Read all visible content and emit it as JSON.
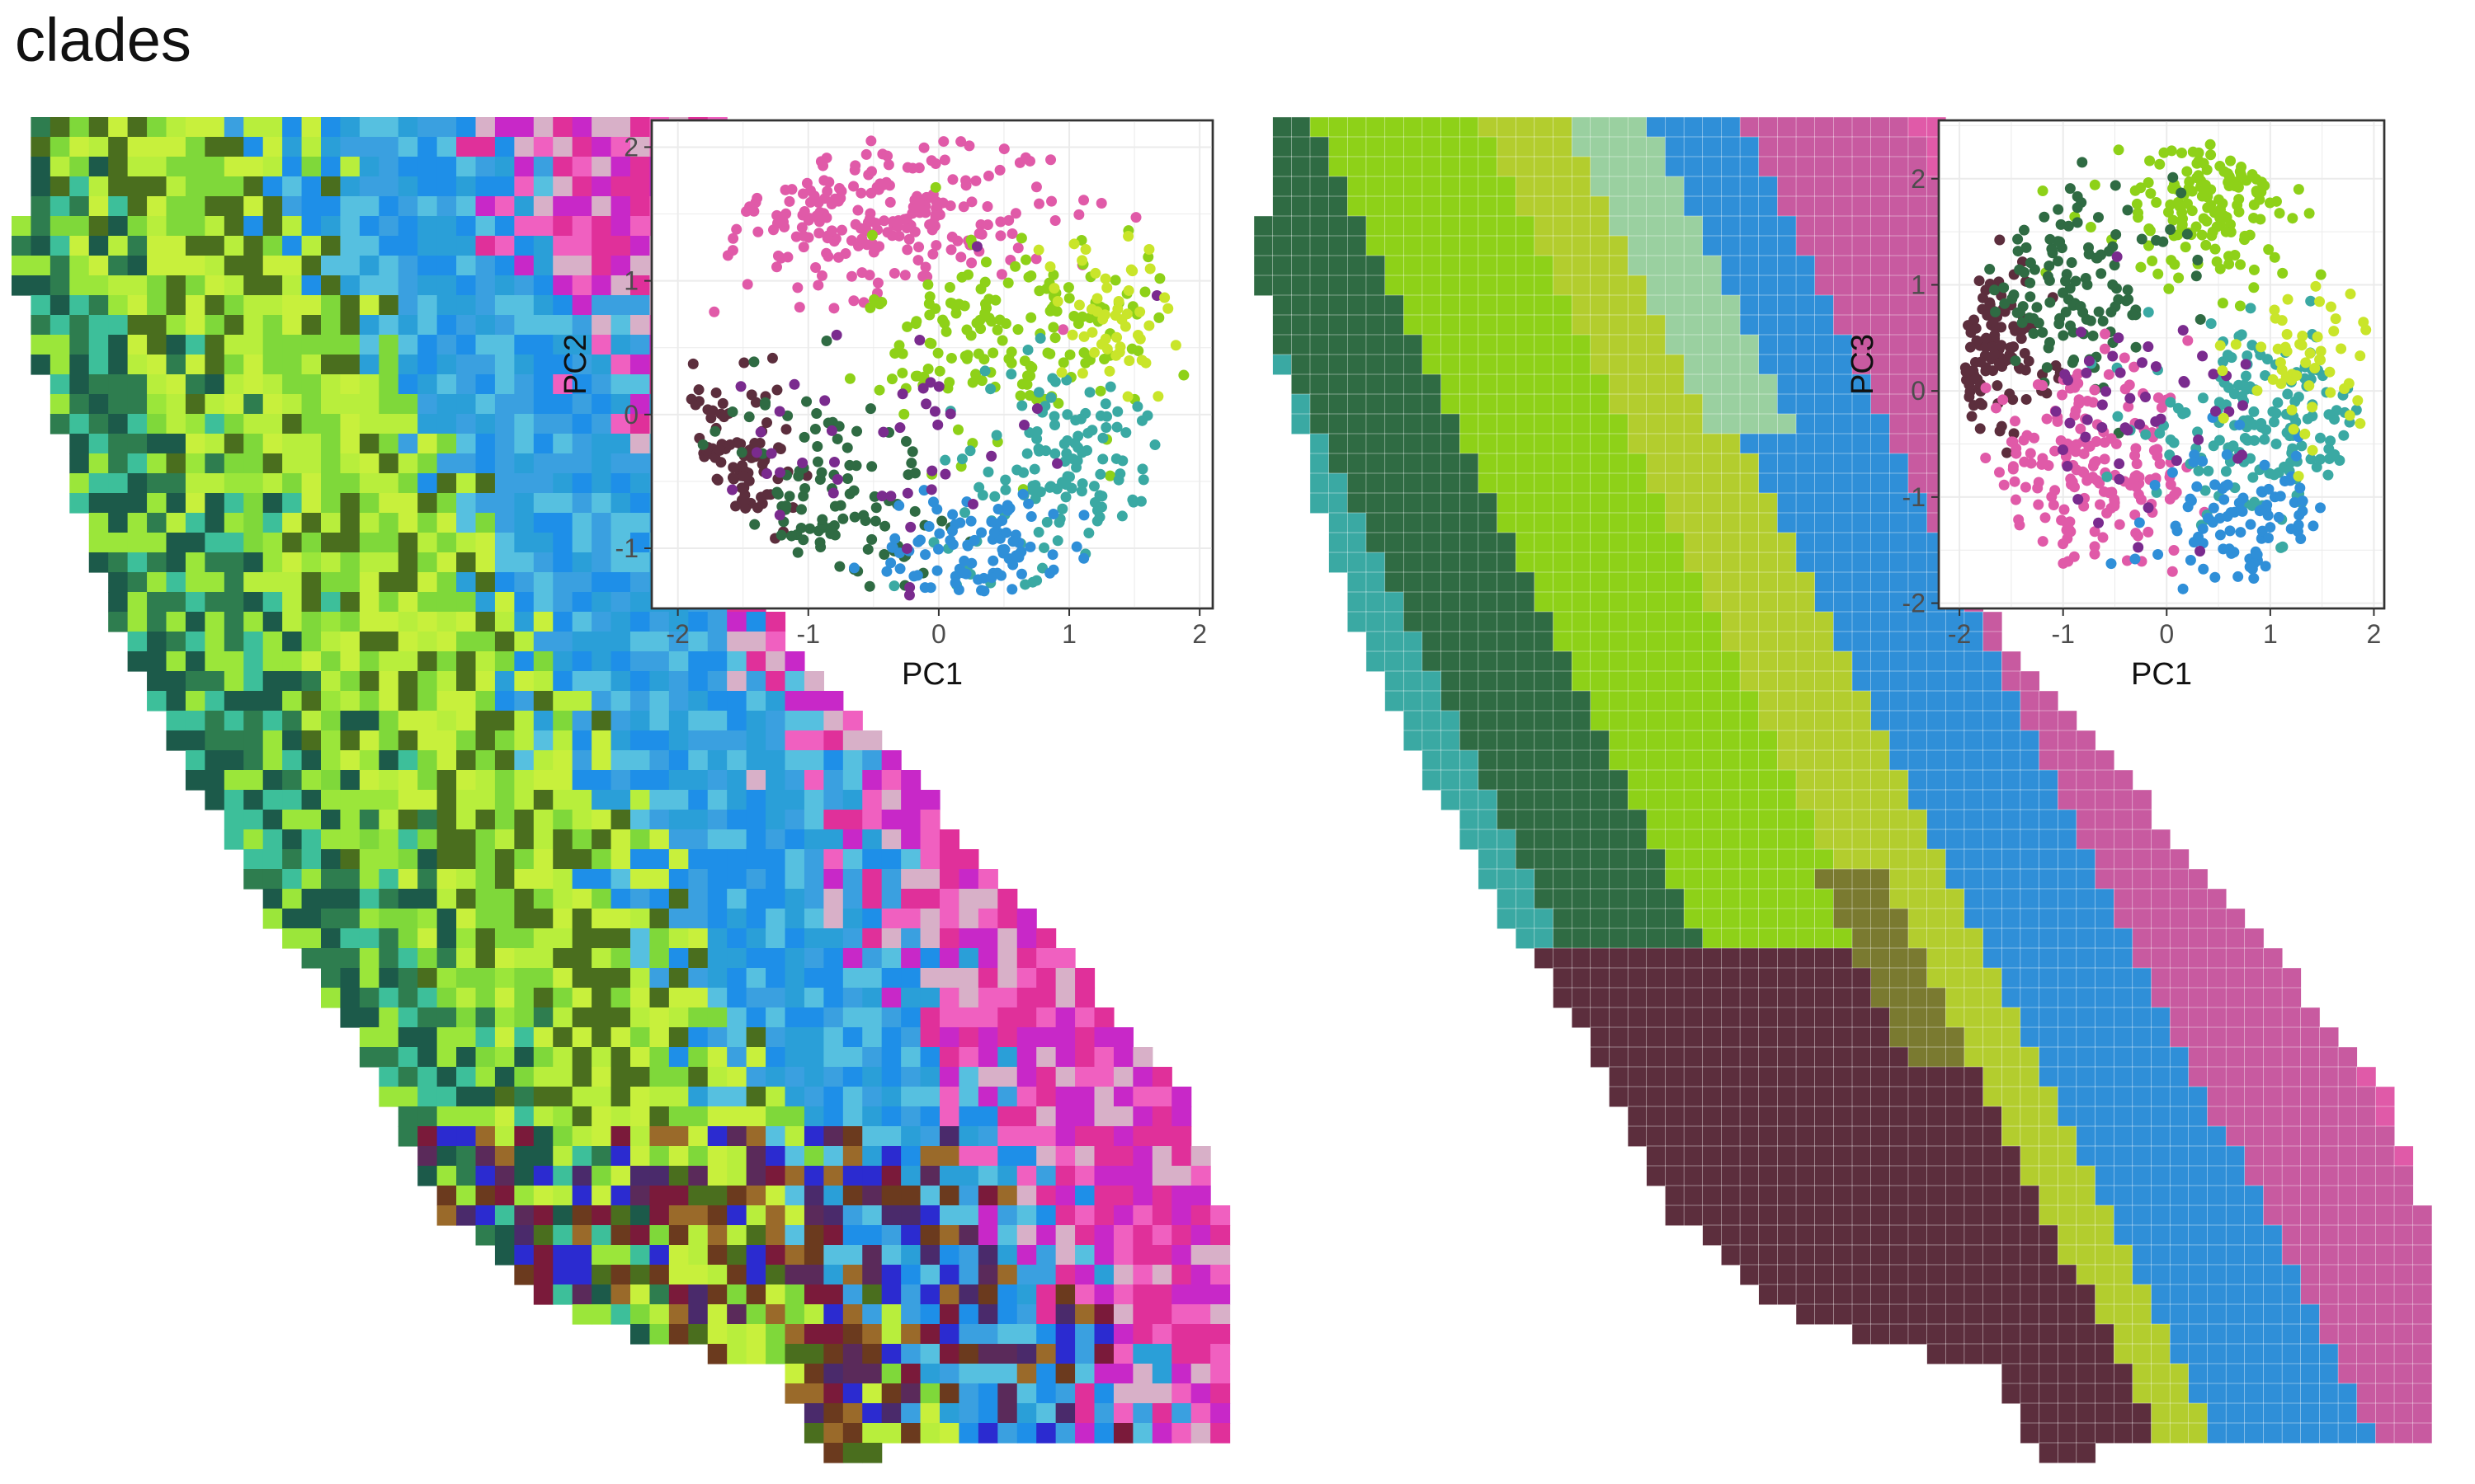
{
  "title": "clades",
  "chart_data": [
    {
      "type": "heatmap",
      "description": "raster map of California colored by PCA (RGB blend of PC1-PC3)",
      "palette": [
        "#1e8fe8",
        "#2a9fd8",
        "#3dbf9a",
        "#2e7d4f",
        "#9be63a",
        "#c8f03c",
        "#6b3a1e",
        "#4a2a6b",
        "#2b2bd0",
        "#e0309a",
        "#f060c0",
        "#d8b0c8"
      ]
    },
    {
      "type": "scatter",
      "xlabel": "PC1",
      "ylabel": "PC2",
      "xlim": [
        -2.2,
        2.1
      ],
      "ylim": [
        -1.45,
        2.2
      ],
      "xticks": [
        -2,
        -1,
        0,
        1,
        2
      ],
      "yticks": [
        -1,
        0,
        1,
        2
      ],
      "grid": true,
      "groups": [
        {
          "color": "#e05aa8",
          "center": [
            -0.5,
            1.5
          ],
          "spread": [
            0.7,
            0.3
          ],
          "n": 260
        },
        {
          "color": "#5c2e3d",
          "center": [
            -1.65,
            -0.45
          ],
          "spread": [
            0.25,
            0.35
          ],
          "n": 150
        },
        {
          "color": "#2f6b43",
          "center": [
            -0.9,
            -0.6
          ],
          "spread": [
            0.45,
            0.4
          ],
          "n": 120
        },
        {
          "color": "#8ed118",
          "center": [
            0.6,
            0.6
          ],
          "spread": [
            0.55,
            0.4
          ],
          "n": 170
        },
        {
          "color": "#3aa9a3",
          "center": [
            1.0,
            -0.5
          ],
          "spread": [
            0.5,
            0.45
          ],
          "n": 160
        },
        {
          "color": "#2f8fd8",
          "center": [
            0.4,
            -1.05
          ],
          "spread": [
            0.45,
            0.25
          ],
          "n": 110
        },
        {
          "color": "#7a2b8e",
          "center": [
            -0.5,
            -0.2
          ],
          "spread": [
            0.6,
            0.5
          ],
          "n": 50
        },
        {
          "color": "#c9e52a",
          "center": [
            1.3,
            0.7
          ],
          "spread": [
            0.35,
            0.35
          ],
          "n": 60
        }
      ]
    },
    {
      "type": "heatmap",
      "description": "California map partitioned into clade regions",
      "legend": "none"
    },
    {
      "type": "scatter",
      "xlabel": "PC1",
      "ylabel": "PC3",
      "xlim": [
        -2.2,
        2.1
      ],
      "ylim": [
        -2.05,
        2.55
      ],
      "xticks": [
        -2,
        -1,
        0,
        1,
        2
      ],
      "yticks": [
        -2,
        -1,
        0,
        1,
        2
      ],
      "grid": true,
      "groups": [
        {
          "color": "#8ed118",
          "center": [
            0.5,
            1.8
          ],
          "spread": [
            0.55,
            0.4
          ],
          "n": 180
        },
        {
          "color": "#5c2e3d",
          "center": [
            -1.7,
            0.4
          ],
          "spread": [
            0.3,
            0.4
          ],
          "n": 130
        },
        {
          "color": "#2f6b43",
          "center": [
            -0.9,
            1.0
          ],
          "spread": [
            0.5,
            0.45
          ],
          "n": 130
        },
        {
          "color": "#e05aa8",
          "center": [
            -0.8,
            -0.8
          ],
          "spread": [
            0.55,
            0.45
          ],
          "n": 200
        },
        {
          "color": "#3aa9a3",
          "center": [
            0.9,
            -0.3
          ],
          "spread": [
            0.55,
            0.45
          ],
          "n": 170
        },
        {
          "color": "#2f8fd8",
          "center": [
            0.8,
            -1.3
          ],
          "spread": [
            0.4,
            0.35
          ],
          "n": 110
        },
        {
          "color": "#7a2b8e",
          "center": [
            -0.3,
            -0.2
          ],
          "spread": [
            0.6,
            0.55
          ],
          "n": 50
        },
        {
          "color": "#c9e52a",
          "center": [
            1.4,
            0.3
          ],
          "spread": [
            0.35,
            0.35
          ],
          "n": 60
        }
      ]
    }
  ]
}
